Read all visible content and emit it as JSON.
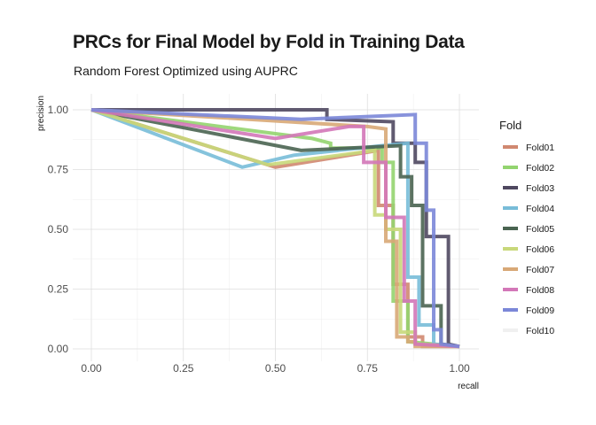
{
  "chart_data": {
    "type": "line",
    "title": "PRCs for Final Model by Fold in Training Data",
    "subtitle": "Random Forest Optimized using AUPRC",
    "xlabel": "recall",
    "ylabel": "precision",
    "xlim": [
      0,
      1
    ],
    "ylim": [
      0,
      1
    ],
    "xticks": [
      "0.00",
      "0.25",
      "0.50",
      "0.75",
      "1.00"
    ],
    "yticks": [
      "0.00",
      "0.25",
      "0.50",
      "0.75",
      "1.00"
    ],
    "grid": true,
    "legend_title": "Fold",
    "legend_position": "right",
    "series": [
      {
        "name": "Fold01",
        "color": "#d08870",
        "x": [
          0,
          0.5,
          0.78,
          0.78,
          0.82,
          0.82,
          0.86,
          0.86,
          0.9,
          0.9,
          1.0
        ],
        "y": [
          1,
          0.76,
          0.83,
          0.6,
          0.6,
          0.27,
          0.27,
          0.05,
          0.05,
          0.01,
          0.01
        ]
      },
      {
        "name": "Fold02",
        "color": "#93d46f",
        "x": [
          0,
          0.6,
          0.65,
          0.65,
          0.79,
          0.79,
          0.82,
          0.82,
          0.86,
          0.86,
          1.0
        ],
        "y": [
          1,
          0.88,
          0.86,
          0.84,
          0.84,
          0.78,
          0.78,
          0.2,
          0.2,
          0.03,
          0.01
        ]
      },
      {
        "name": "Fold03",
        "color": "#4f4860",
        "x": [
          0,
          0.64,
          0.64,
          0.82,
          0.82,
          0.88,
          0.88,
          0.91,
          0.91,
          0.97,
          0.97,
          1.0
        ],
        "y": [
          1,
          1,
          0.96,
          0.95,
          0.86,
          0.86,
          0.78,
          0.78,
          0.47,
          0.47,
          0.02,
          0.01
        ]
      },
      {
        "name": "Fold04",
        "color": "#78bcd8",
        "x": [
          0,
          0.41,
          0.55,
          0.79,
          0.86,
          0.86,
          0.89,
          0.89,
          0.93,
          0.93,
          1.0
        ],
        "y": [
          1,
          0.76,
          0.81,
          0.85,
          0.86,
          0.3,
          0.3,
          0.1,
          0.1,
          0.02,
          0.01
        ]
      },
      {
        "name": "Fold05",
        "color": "#4a6451",
        "x": [
          0,
          0.57,
          0.84,
          0.84,
          0.87,
          0.87,
          0.9,
          0.9,
          0.95,
          0.95,
          1.0
        ],
        "y": [
          1,
          0.83,
          0.85,
          0.72,
          0.72,
          0.6,
          0.6,
          0.18,
          0.18,
          0.02,
          0.01
        ]
      },
      {
        "name": "Fold06",
        "color": "#c8d87a",
        "x": [
          0,
          0.48,
          0.77,
          0.77,
          0.8,
          0.8,
          0.84,
          0.84,
          0.88,
          0.88,
          1.0
        ],
        "y": [
          1,
          0.77,
          0.83,
          0.56,
          0.56,
          0.5,
          0.5,
          0.07,
          0.07,
          0.02,
          0.01
        ]
      },
      {
        "name": "Fold07",
        "color": "#d8a877",
        "x": [
          0,
          0.75,
          0.8,
          0.8,
          0.83,
          0.83,
          0.86,
          0.86,
          0.88,
          0.88,
          1.0
        ],
        "y": [
          1,
          0.93,
          0.92,
          0.45,
          0.45,
          0.05,
          0.05,
          0.03,
          0.03,
          0.01,
          0.01
        ]
      },
      {
        "name": "Fold08",
        "color": "#d377b8",
        "x": [
          0,
          0.5,
          0.7,
          0.74,
          0.74,
          0.8,
          0.8,
          0.85,
          0.85,
          0.88,
          0.88,
          1.0
        ],
        "y": [
          1,
          0.88,
          0.93,
          0.93,
          0.78,
          0.78,
          0.55,
          0.55,
          0.2,
          0.2,
          0.02,
          0.01
        ]
      },
      {
        "name": "Fold09",
        "color": "#7b87d8",
        "x": [
          0,
          0.57,
          0.88,
          0.88,
          0.91,
          0.91,
          0.93,
          0.93,
          0.95,
          0.95,
          1.0
        ],
        "y": [
          1,
          0.96,
          0.98,
          0.86,
          0.86,
          0.58,
          0.58,
          0.08,
          0.08,
          0.02,
          0.01
        ]
      },
      {
        "name": "Fold10",
        "color": "#f0f0f0",
        "x": [],
        "y": []
      }
    ]
  }
}
